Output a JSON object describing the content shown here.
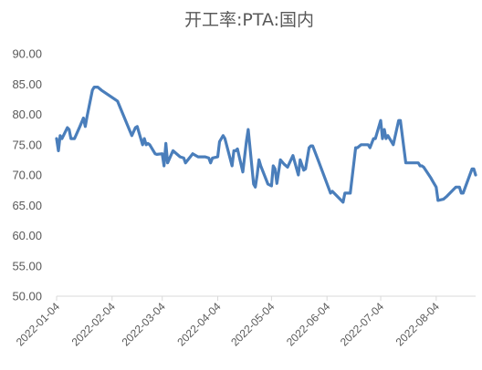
{
  "chart_data": {
    "type": "line",
    "title": "开工率:PTA:国内",
    "xlabel": "",
    "ylabel": "",
    "ylim": [
      50,
      90
    ],
    "yticks": [
      "50.00",
      "55.00",
      "60.00",
      "65.00",
      "70.00",
      "75.00",
      "80.00",
      "85.00",
      "90.00"
    ],
    "xticks": [
      "2022-01-04",
      "2022-02-04",
      "2022-03-04",
      "2022-04-04",
      "2022-05-04",
      "2022-06-04",
      "2022-07-04",
      "2022-08-04"
    ],
    "xlim": [
      "2022-01-04",
      "2022-08-26"
    ],
    "grid": false,
    "legend": "none",
    "colors": {
      "series": "#4a7ebb",
      "axis": "#d9d9d9",
      "text": "#595959"
    },
    "series": [
      {
        "x": [
          "2022-01-04",
          "2022-01-05",
          "2022-01-06",
          "2022-01-07",
          "2022-01-10",
          "2022-01-11",
          "2022-01-12",
          "2022-01-14",
          "2022-01-17",
          "2022-01-19",
          "2022-01-20",
          "2022-01-21",
          "2022-01-24",
          "2022-01-25",
          "2022-01-27",
          "2022-01-29",
          "2022-02-07",
          "2022-02-15",
          "2022-02-17",
          "2022-02-18",
          "2022-02-21",
          "2022-02-22",
          "2022-02-23",
          "2022-02-24",
          "2022-02-25",
          "2022-02-28",
          "2022-03-01",
          "2022-03-04",
          "2022-03-05",
          "2022-03-06",
          "2022-03-07",
          "2022-03-10",
          "2022-03-14",
          "2022-03-16",
          "2022-03-17",
          "2022-03-21",
          "2022-03-24",
          "2022-03-28",
          "2022-03-30",
          "2022-03-31",
          "2022-04-01",
          "2022-04-04",
          "2022-04-05",
          "2022-04-06",
          "2022-04-07",
          "2022-04-08",
          "2022-04-12",
          "2022-04-13",
          "2022-04-14",
          "2022-04-15",
          "2022-04-18",
          "2022-04-20",
          "2022-04-21",
          "2022-04-24",
          "2022-04-25",
          "2022-04-26",
          "2022-04-27",
          "2022-04-28",
          "2022-05-02",
          "2022-05-04",
          "2022-05-05",
          "2022-05-06",
          "2022-05-07",
          "2022-05-09",
          "2022-05-11",
          "2022-05-13",
          "2022-05-16",
          "2022-05-19",
          "2022-05-20",
          "2022-05-22",
          "2022-05-23",
          "2022-05-25",
          "2022-05-26",
          "2022-05-27",
          "2022-05-30",
          "2022-06-06",
          "2022-06-07",
          "2022-06-13",
          "2022-06-14",
          "2022-06-16",
          "2022-06-17",
          "2022-06-20",
          "2022-06-21",
          "2022-06-23",
          "2022-06-27",
          "2022-06-28",
          "2022-06-30",
          "2022-07-01",
          "2022-07-04",
          "2022-07-05",
          "2022-07-06",
          "2022-07-07",
          "2022-07-08",
          "2022-07-11",
          "2022-07-14",
          "2022-07-15",
          "2022-07-18",
          "2022-07-21",
          "2022-07-22",
          "2022-07-25",
          "2022-07-26",
          "2022-07-27",
          "2022-07-28",
          "2022-08-01",
          "2022-08-02",
          "2022-08-04",
          "2022-08-05",
          "2022-08-08",
          "2022-08-10",
          "2022-08-15",
          "2022-08-17",
          "2022-08-18",
          "2022-08-19",
          "2022-08-24",
          "2022-08-25",
          "2022-08-26"
        ],
        "values": [
          76.0,
          74.0,
          76.5,
          76.0,
          77.8,
          77.5,
          76.0,
          76.0,
          78.0,
          79.4,
          78.0,
          79.6,
          84.0,
          84.5,
          84.5,
          84.0,
          82.2,
          76.5,
          77.8,
          78.0,
          75.0,
          76.0,
          75.0,
          75.2,
          75.0,
          73.5,
          73.4,
          73.5,
          71.5,
          75.2,
          72.0,
          74.0,
          73.0,
          72.8,
          72.0,
          73.5,
          73.0,
          73.0,
          72.8,
          72.0,
          72.8,
          73.0,
          75.5,
          76.0,
          76.5,
          76.0,
          71.5,
          74.0,
          74.0,
          74.3,
          70.5,
          75.5,
          77.5,
          68.5,
          68.0,
          70.0,
          72.5,
          71.5,
          68.5,
          68.2,
          71.5,
          71.0,
          68.6,
          72.5,
          71.8,
          71.3,
          73.2,
          70.0,
          72.5,
          70.8,
          71.0,
          74.5,
          74.8,
          74.8,
          72.5,
          67.0,
          67.3,
          65.5,
          67.0,
          67.0,
          67.0,
          74.5,
          74.5,
          75.0,
          75.0,
          74.5,
          76.0,
          76.0,
          79.0,
          76.0,
          77.5,
          76.0,
          76.5,
          75.0,
          79.0,
          79.0,
          72.0,
          72.0,
          72.0,
          72.0,
          71.5,
          71.5,
          71.3,
          69.5,
          69.0,
          68.0,
          65.8,
          66.0,
          66.5,
          68.0,
          68.0,
          67.0,
          67.0,
          71.0,
          71.0,
          70.0
        ]
      }
    ]
  }
}
